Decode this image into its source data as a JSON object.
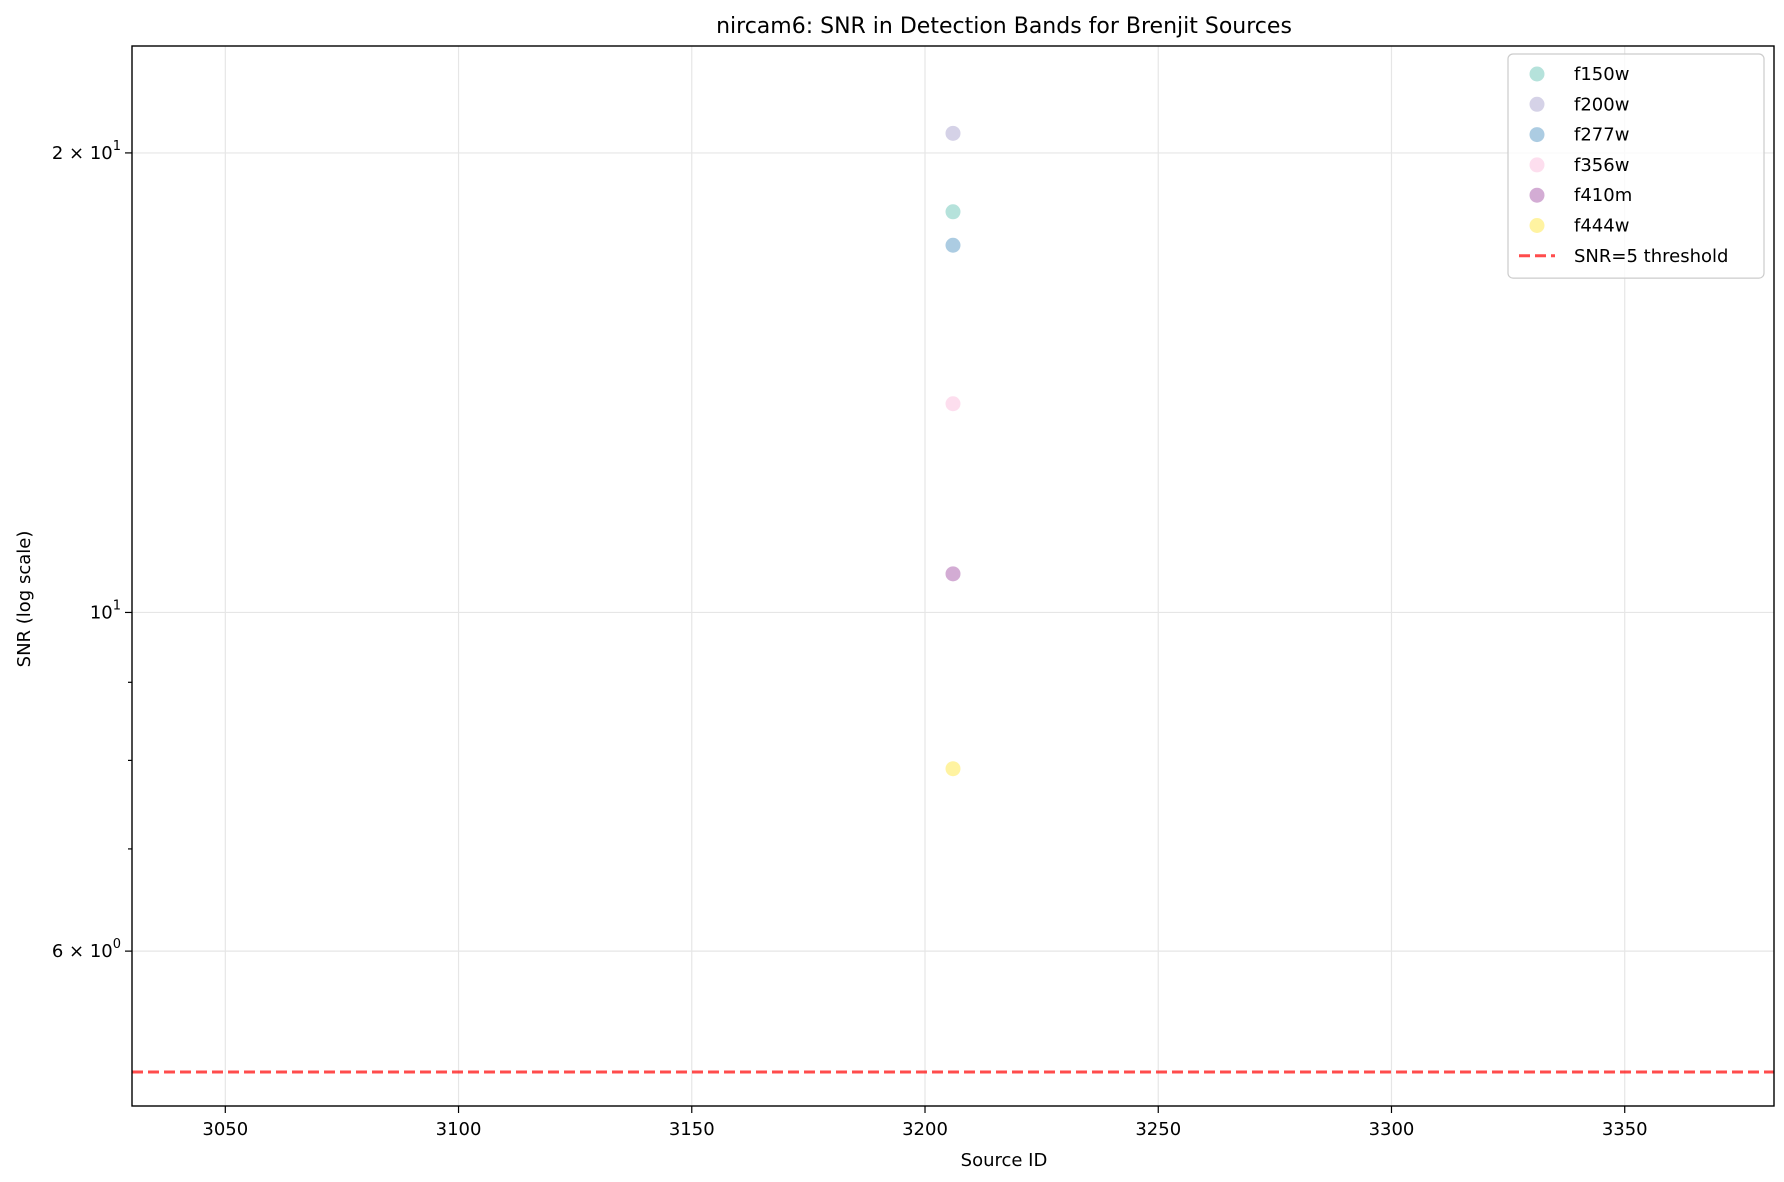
{
  "chart_data": {
    "type": "scatter",
    "title": "nircam6: SNR in Detection Bands for Brenjit Sources",
    "xlabel": "Source ID",
    "ylabel": "SNR (log scale)",
    "yscale": "log",
    "xlim": [
      3030,
      3382
    ],
    "ylim": [
      4.75,
      23.5
    ],
    "grid": true,
    "legend_position": "top-right",
    "xticks": [
      3050,
      3100,
      3150,
      3200,
      3250,
      3300,
      3350
    ],
    "xtick_labels": [
      "3050",
      "3100",
      "3150",
      "3200",
      "3250",
      "3300",
      "3350"
    ],
    "yticks_major": [
      {
        "value": 6,
        "mantissa": "6",
        "times": " × ",
        "base": "10",
        "exp": "0"
      },
      {
        "value": 10,
        "mantissa": "",
        "times": "",
        "base": "10",
        "exp": "1"
      },
      {
        "value": 20,
        "mantissa": "2",
        "times": " × ",
        "base": "10",
        "exp": "1"
      }
    ],
    "yticks_minor": [
      7,
      8,
      9
    ],
    "series": [
      {
        "name": "f150w",
        "color": "#8dd3c7",
        "x": [
          3206
        ],
        "y": [
          18.3
        ]
      },
      {
        "name": "f200w",
        "color": "#bebada",
        "x": [
          3206
        ],
        "y": [
          20.6
        ]
      },
      {
        "name": "f277w",
        "color": "#80b1d3",
        "x": [
          3206
        ],
        "y": [
          17.4
        ]
      },
      {
        "name": "f356w",
        "color": "#fccde5",
        "x": [
          3206
        ],
        "y": [
          13.7
        ]
      },
      {
        "name": "f410m",
        "color": "#bc80bd",
        "x": [
          3206
        ],
        "y": [
          10.6
        ]
      },
      {
        "name": "f444w",
        "color": "#ffed6f",
        "x": [
          3206
        ],
        "y": [
          7.9
        ]
      }
    ],
    "threshold": {
      "name": "SNR=5 threshold",
      "value": 5,
      "color": "#ff0000"
    }
  }
}
